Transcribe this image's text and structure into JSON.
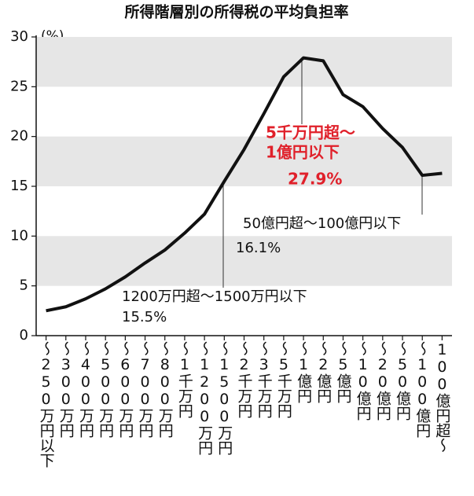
{
  "chart_data": {
    "type": "line",
    "title": "所得階層別の所得税の平均負担率",
    "y_label": "(%)",
    "categories": [
      "〜250万円以下",
      "〜300万円",
      "〜400万円",
      "〜500万円",
      "〜600万円",
      "〜700万円",
      "〜800万円",
      "〜1千万円",
      "〜1200万円",
      "〜1500万円",
      "〜2千万円",
      "〜3千万円",
      "〜5千万円",
      "〜1億円",
      "〜2億円",
      "〜5億円",
      "〜10億円",
      "〜20億円",
      "〜50億円",
      "〜100億円",
      "100億円超〜"
    ],
    "values": [
      2.5,
      2.9,
      3.7,
      4.7,
      5.9,
      7.3,
      8.6,
      10.3,
      12.2,
      15.5,
      18.7,
      22.3,
      26.0,
      27.9,
      27.6,
      24.2,
      23.0,
      20.8,
      18.9,
      16.1,
      16.3
    ],
    "color": "#111111",
    "ylim": [
      0,
      30
    ],
    "yticks": [
      0,
      5,
      10,
      15,
      20,
      25,
      30
    ],
    "grid": true,
    "annotations": [
      {
        "lines": [
          "5千万円超〜",
          "1億円以下",
          "27.9%"
        ],
        "color": "#e0202a"
      },
      {
        "lines": [
          "1200万円超〜1500万円以下",
          "15.5%"
        ],
        "color": "#111111"
      },
      {
        "lines": [
          "50億円超〜100億円以下",
          "16.1%"
        ],
        "color": "#111111"
      }
    ]
  }
}
